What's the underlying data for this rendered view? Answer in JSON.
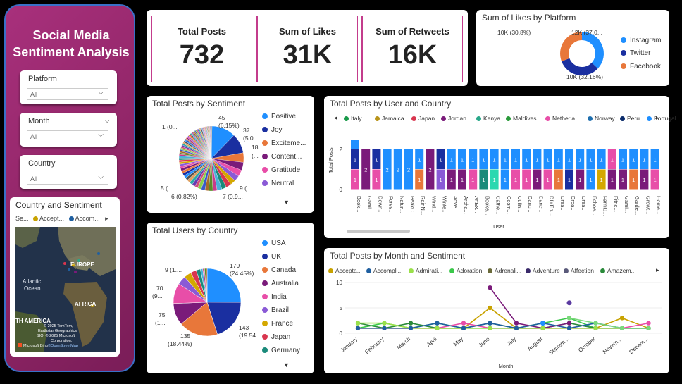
{
  "sidebar": {
    "title_line1": "Social Media",
    "title_line2": "Sentiment Analysis",
    "slicers": [
      {
        "label": "Platform",
        "value": "All"
      },
      {
        "label": "Month",
        "value": "All"
      },
      {
        "label": "Country",
        "value": "All"
      }
    ],
    "map": {
      "title": "Country and Sentiment",
      "legend_prefix": "Se...",
      "legend": [
        {
          "name": "Accept...",
          "color": "#c8a200"
        },
        {
          "name": "Accom...",
          "color": "#1f5fa0"
        }
      ],
      "labels": [
        "EUROPE",
        "Atlantic Ocean",
        "AFRICA",
        "TH AMERICA"
      ],
      "copyright": "© 2025 TomTom, Earthstar Geographics SIO, © 2025 Microsoft Corporation,",
      "copyright_link": "©OpenStreetMap",
      "bing": "Microsoft Bing"
    }
  },
  "kpis": [
    {
      "label": "Total Posts",
      "value": "732"
    },
    {
      "label": "Sum of Likes",
      "value": "31K"
    },
    {
      "label": "Sum of Retweets",
      "value": "16K"
    }
  ],
  "likes_platform": {
    "title": "Sum of Likes by Platform",
    "legend": [
      {
        "name": "Instagram",
        "color": "#1f8fff"
      },
      {
        "name": "Twitter",
        "color": "#1a2fa0"
      },
      {
        "name": "Facebook",
        "color": "#e8773a"
      }
    ],
    "labels": {
      "instagram": "12K (37.0...",
      "facebook": "10K (30.8%)",
      "twitter": "10K (32.16%)"
    }
  },
  "sentiment": {
    "title": "Total Posts by Sentiment",
    "legend": [
      {
        "name": "Positive",
        "color": "#1f8fff"
      },
      {
        "name": "Joy",
        "color": "#1a2fa0"
      },
      {
        "name": "Exciteme...",
        "color": "#e8773a"
      },
      {
        "name": "Content...",
        "color": "#7a1b7a"
      },
      {
        "name": "Gratitude",
        "color": "#e84ea8"
      },
      {
        "name": "Neutral",
        "color": "#8a5ad6"
      }
    ],
    "labels": {
      "top": "45",
      "top_pct": "(6.15%)",
      "r1": "37",
      "r1b": "(5.0...",
      "r2": "18",
      "r2b": "(...",
      "l1": "1 (0...",
      "l2": "5 (...",
      "b1": "6 (0.82%)",
      "b2": "7 (0.9...",
      "b3": "9 (..."
    }
  },
  "users_country": {
    "title": "Total Users by Country",
    "legend": [
      {
        "name": "USA",
        "color": "#1f8fff"
      },
      {
        "name": "UK",
        "color": "#1a2fa0"
      },
      {
        "name": "Canada",
        "color": "#e8773a"
      },
      {
        "name": "Australia",
        "color": "#7a1b7a"
      },
      {
        "name": "India",
        "color": "#e84ea8"
      },
      {
        "name": "Brazil",
        "color": "#8a5ad6"
      },
      {
        "name": "France",
        "color": "#d4a800"
      },
      {
        "name": "Japan",
        "color": "#d9364f"
      },
      {
        "name": "Germany",
        "color": "#1a8a7a"
      }
    ],
    "labels": {
      "usa": "179",
      "usa_pct": "(24.45%)",
      "uk": "143",
      "uk_pct": "(19.54...",
      "canada": "135",
      "canada_pct": "(18.44%)",
      "aus": "75",
      "aus_pct": "(1...",
      "india": "70",
      "india_pct": "(9...",
      "other": "9 (1...."
    }
  },
  "user_country": {
    "title": "Total Posts by User and Country",
    "legend": [
      {
        "name": "Italy",
        "color": "#1a9a4a"
      },
      {
        "name": "Jamaica",
        "color": "#b8941a"
      },
      {
        "name": "Japan",
        "color": "#d9364f"
      },
      {
        "name": "Jordan",
        "color": "#7a1b7a"
      },
      {
        "name": "Kenya",
        "color": "#2aa88a"
      },
      {
        "name": "Maldives",
        "color": "#2a9a3a"
      },
      {
        "name": "Netherla...",
        "color": "#e84ea8"
      },
      {
        "name": "Norway",
        "color": "#1f6fae"
      },
      {
        "name": "Peru",
        "color": "#0a2a6a"
      },
      {
        "name": "Portugal",
        "color": "#1f8fff"
      }
    ],
    "ylabel": "Total Posts",
    "xlabel": "User",
    "yticks": [
      "0",
      "1",
      "2"
    ],
    "users": [
      "Book...",
      "Gami...",
      "Down...",
      "Fores...",
      "Natur...",
      "PeakC...",
      "RainN...",
      "Wind...",
      "Winte...",
      "Adve...",
      "Archa...",
      "ArtEx...",
      "Booke...",
      "Cathe...",
      "Cosm...",
      "Culin...",
      "Danc...",
      "Danc...",
      "DIYEn...",
      "Drea...",
      "Drea...",
      "Drea...",
      "Echoe...",
      "FamilJ...",
      "Fitne...",
      "Gami...",
      "Garde...",
      "Growt...",
      "Home..."
    ]
  },
  "month_sentiment": {
    "title": "Total Posts by Month and Sentiment",
    "legend": [
      {
        "name": "Accepta...",
        "color": "#c8a200"
      },
      {
        "name": "Accompli...",
        "color": "#1f5fa0"
      },
      {
        "name": "Admirati...",
        "color": "#9ae04a"
      },
      {
        "name": "Adoration",
        "color": "#3ac84a"
      },
      {
        "name": "Adrenali...",
        "color": "#6a6a3a"
      },
      {
        "name": "Adventure",
        "color": "#3a2a6a"
      },
      {
        "name": "Affection",
        "color": "#5a5a7a"
      },
      {
        "name": "Amazem...",
        "color": "#2a8a3a"
      }
    ],
    "xlabel": "Month",
    "yticks": [
      "0",
      "5",
      "10"
    ],
    "months": [
      "January",
      "February",
      "March",
      "April",
      "May",
      "June",
      "July",
      "August",
      "Septem...",
      "October",
      "Novem...",
      "Decem..."
    ]
  },
  "chart_data": [
    {
      "type": "pie",
      "title": "Sum of Likes by Platform",
      "categories": [
        "Instagram",
        "Twitter",
        "Facebook"
      ],
      "values": [
        37.0,
        32.16,
        30.8
      ],
      "labels": [
        "12K",
        "10K",
        "10K"
      ]
    },
    {
      "type": "pie",
      "title": "Total Users by Country",
      "categories": [
        "USA",
        "UK",
        "Canada",
        "Australia",
        "India",
        "Brazil",
        "France",
        "Japan",
        "Germany"
      ],
      "values": [
        179,
        143,
        135,
        75,
        70,
        30,
        25,
        20,
        15
      ]
    },
    {
      "type": "bar",
      "title": "Total Posts by User and Country",
      "ylim": [
        0,
        2
      ],
      "values": [
        2,
        2,
        2,
        2,
        2,
        2,
        2,
        2,
        2,
        2,
        2,
        2,
        2,
        2,
        2,
        2,
        2,
        2,
        2,
        2,
        2,
        2,
        2,
        2,
        2,
        2,
        2,
        2,
        2
      ]
    },
    {
      "type": "line",
      "title": "Total Posts by Month and Sentiment",
      "ylim": [
        0,
        10
      ],
      "series": [
        {
          "name": "Accepta...",
          "values": [
            1,
            1,
            1,
            1,
            1,
            5,
            1,
            1,
            1,
            1,
            3,
            1
          ]
        },
        {
          "name": "Adoration",
          "values": [
            1,
            2,
            1,
            2,
            1,
            1,
            1,
            2,
            3,
            1,
            1,
            1
          ]
        },
        {
          "name": "Amazem...",
          "values": [
            2,
            1,
            2,
            1,
            1,
            2,
            1,
            1,
            2,
            1,
            1,
            1
          ]
        }
      ]
    }
  ]
}
